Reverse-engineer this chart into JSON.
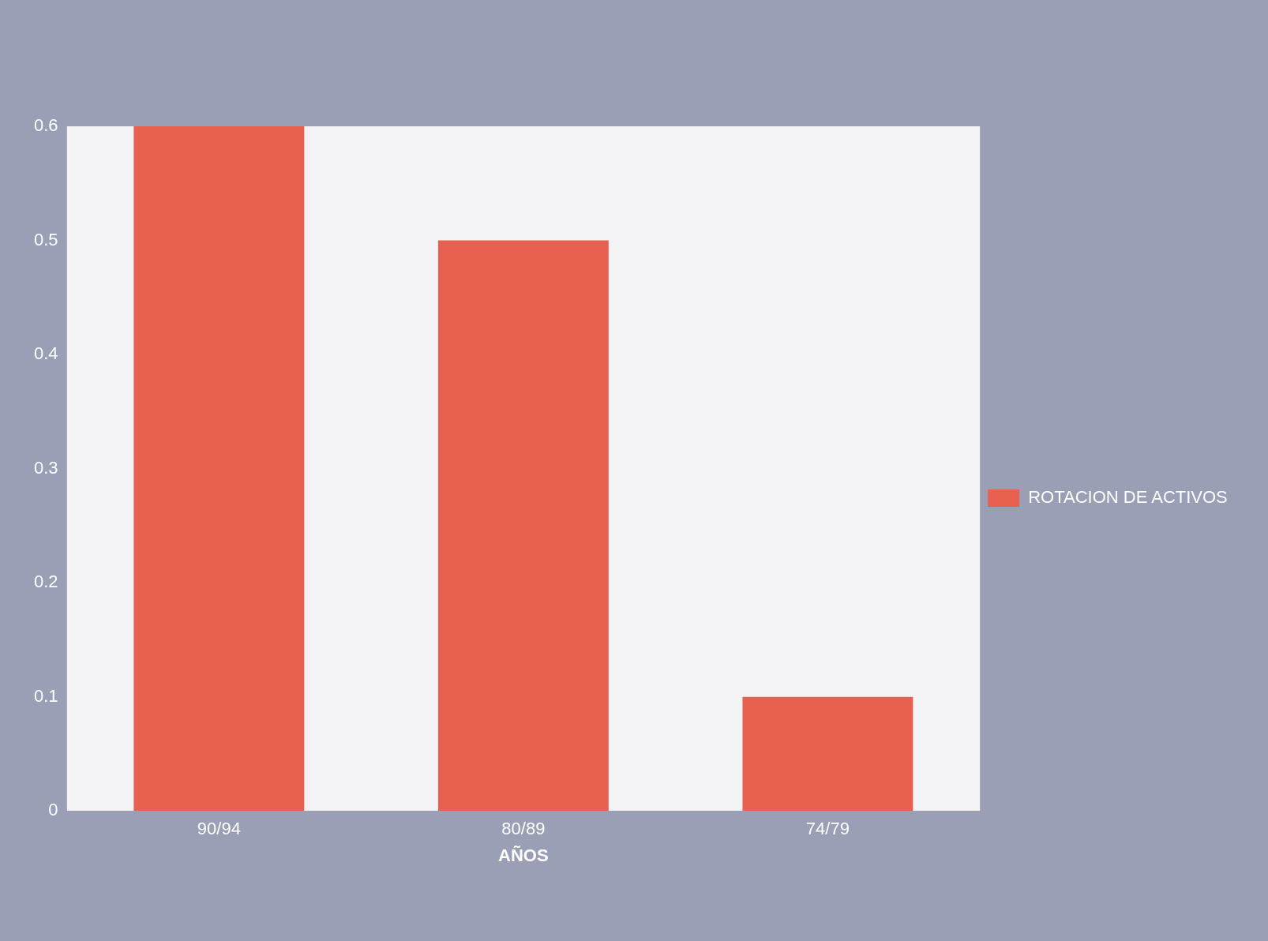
{
  "chart_data": {
    "type": "bar",
    "xlabel": "AÑOS",
    "categories": [
      "90/94",
      "80/89",
      "74/79"
    ],
    "series": [
      {
        "name": "ROTACION DE ACTIVOS",
        "color": "#e8604f",
        "values": [
          0.6,
          0.5,
          0.1
        ]
      }
    ],
    "ylim": [
      0,
      0.6
    ],
    "yticks": [
      0,
      0.1,
      0.2,
      0.3,
      0.4,
      0.5,
      0.6
    ],
    "grid": false,
    "legend": "right"
  }
}
